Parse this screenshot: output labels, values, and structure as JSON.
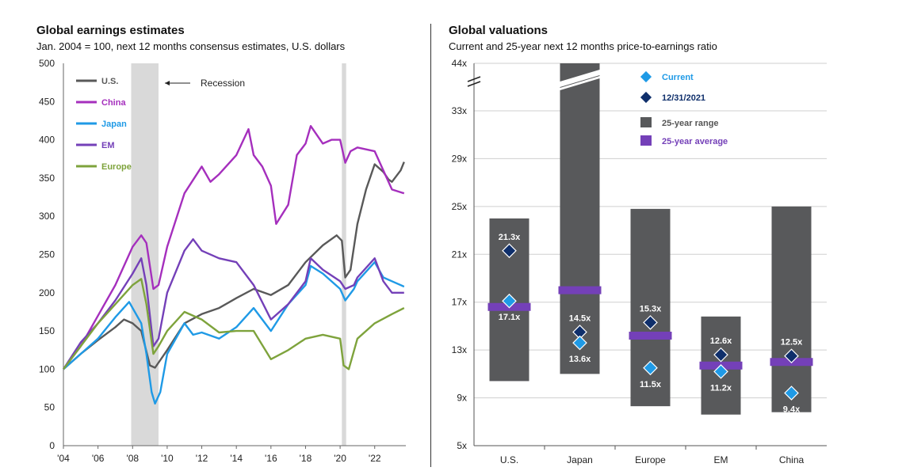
{
  "left": {
    "title": "Global earnings estimates",
    "subtitle": "Jan. 2004 = 100, next 12 months consensus estimates, U.S. dollars"
  },
  "right": {
    "title": "Global valuations",
    "subtitle": "Current and 25-year next 12 months price-to-earnings ratio"
  },
  "colors": {
    "us": "#595959",
    "china": "#a52fbd",
    "japan": "#1f9ae6",
    "em": "#7440b8",
    "europe": "#7ea33c",
    "recession": "#d9d9d9",
    "bar": "#58595b",
    "avg": "#7440b8",
    "current": "#1f9ae6",
    "dec2021": "#0f2f6b"
  },
  "chart_data": [
    {
      "type": "line",
      "title": "Global earnings estimates",
      "subtitle": "Jan. 2004 = 100, next 12 months consensus estimates, U.S. dollars",
      "xlim": [
        2004,
        2023.8
      ],
      "ylim": [
        0,
        500
      ],
      "xticks": [
        2004,
        2006,
        2008,
        2010,
        2012,
        2014,
        2016,
        2018,
        2020,
        2022
      ],
      "xtick_labels": [
        "'04",
        "'06",
        "'08",
        "'10",
        "'12",
        "'14",
        "'16",
        "'18",
        "'20",
        "'22"
      ],
      "yticks": [
        0,
        50,
        100,
        150,
        200,
        250,
        300,
        350,
        400,
        450,
        500
      ],
      "recessions": [
        [
          2007.92,
          2009.5
        ],
        [
          2020.1,
          2020.35
        ]
      ],
      "recession_label": "Recession",
      "series": [
        {
          "name": "U.S.",
          "key": "us",
          "x": [
            2004,
            2005,
            2006,
            2007,
            2007.5,
            2008,
            2008.5,
            2009,
            2009.3,
            2010,
            2011,
            2012,
            2013,
            2014,
            2015,
            2016,
            2017,
            2018,
            2019,
            2019.8,
            2020.1,
            2020.3,
            2020.6,
            2021,
            2021.5,
            2022,
            2022.5,
            2022.8,
            2023,
            2023.5,
            2023.7
          ],
          "values": [
            100,
            120,
            138,
            155,
            165,
            160,
            150,
            105,
            102,
            125,
            160,
            172,
            180,
            193,
            205,
            197,
            210,
            240,
            262,
            275,
            268,
            220,
            230,
            290,
            335,
            368,
            358,
            348,
            345,
            360,
            371
          ]
        },
        {
          "name": "China",
          "key": "china",
          "x": [
            2004,
            2005,
            2006,
            2007,
            2008,
            2008.5,
            2008.8,
            2009.2,
            2009.5,
            2010,
            2011,
            2012,
            2012.5,
            2013,
            2014,
            2014.7,
            2015,
            2015.5,
            2016,
            2016.3,
            2017,
            2017.5,
            2018,
            2018.3,
            2019,
            2019.5,
            2020,
            2020.3,
            2020.6,
            2021,
            2022,
            2022.5,
            2023,
            2023.7
          ],
          "values": [
            100,
            130,
            170,
            210,
            260,
            275,
            265,
            205,
            210,
            260,
            330,
            365,
            345,
            355,
            380,
            414,
            380,
            365,
            340,
            290,
            315,
            380,
            395,
            418,
            395,
            400,
            400,
            370,
            385,
            390,
            385,
            360,
            335,
            330
          ]
        },
        {
          "name": "Japan",
          "key": "japan",
          "x": [
            2004,
            2005,
            2006,
            2007,
            2007.8,
            2008.5,
            2008.8,
            2009.1,
            2009.3,
            2009.6,
            2010,
            2011,
            2011.5,
            2012,
            2013,
            2014,
            2015,
            2016,
            2017,
            2018,
            2018.3,
            2019,
            2020,
            2020.3,
            2020.8,
            2021,
            2022,
            2022.5,
            2023,
            2023.7
          ],
          "values": [
            100,
            120,
            140,
            168,
            188,
            160,
            120,
            70,
            55,
            70,
            120,
            160,
            145,
            148,
            140,
            155,
            180,
            150,
            185,
            210,
            235,
            225,
            205,
            190,
            205,
            215,
            240,
            220,
            215,
            208
          ]
        },
        {
          "name": "EM",
          "key": "em",
          "x": [
            2004,
            2005,
            2006,
            2007,
            2008,
            2008.5,
            2008.8,
            2009.2,
            2009.5,
            2010,
            2011,
            2011.5,
            2012,
            2013,
            2014,
            2015,
            2016,
            2017,
            2018,
            2018.3,
            2019,
            2020,
            2020.3,
            2020.8,
            2021,
            2022,
            2022.5,
            2023,
            2023.7
          ],
          "values": [
            100,
            135,
            160,
            190,
            225,
            245,
            210,
            130,
            140,
            200,
            255,
            270,
            255,
            245,
            240,
            210,
            165,
            185,
            215,
            245,
            230,
            215,
            205,
            210,
            220,
            245,
            215,
            200,
            200
          ]
        },
        {
          "name": "Europe",
          "key": "europe",
          "x": [
            2004,
            2005,
            2006,
            2007,
            2008,
            2008.5,
            2008.8,
            2009.2,
            2009.5,
            2010,
            2011,
            2012,
            2013,
            2014,
            2015,
            2016,
            2017,
            2018,
            2019,
            2020,
            2020.2,
            2020.5,
            2021,
            2022,
            2023,
            2023.7
          ],
          "values": [
            100,
            130,
            160,
            185,
            210,
            218,
            185,
            120,
            130,
            150,
            175,
            165,
            148,
            150,
            150,
            113,
            125,
            140,
            145,
            140,
            105,
            100,
            140,
            160,
            172,
            180
          ]
        }
      ]
    },
    {
      "type": "bar",
      "title": "Global valuations",
      "subtitle": "Current and 25-year next 12 months price-to-earnings ratio",
      "categories": [
        "U.S.",
        "Japan",
        "Europe",
        "EM",
        "China"
      ],
      "ylim": [
        5,
        44
      ],
      "ytick_labels": [
        "5x",
        "9x",
        "13x",
        "17x",
        "21x",
        "25x",
        "29x",
        "33x",
        "44x"
      ],
      "axis_break": true,
      "range_low": [
        10.4,
        11.0,
        8.3,
        7.6,
        7.8
      ],
      "range_high": [
        24.0,
        44.0,
        24.8,
        15.8,
        25.0
      ],
      "avg": [
        16.6,
        18.0,
        14.2,
        11.7,
        12.0
      ],
      "current": [
        17.1,
        13.6,
        11.5,
        11.2,
        9.4
      ],
      "current_labels": [
        "17.1x",
        "13.6x",
        "11.5x",
        "11.2x",
        "9.4x"
      ],
      "dec2021": [
        21.3,
        14.5,
        15.3,
        12.6,
        12.5
      ],
      "dec2021_labels": [
        "21.3x",
        "14.5x",
        "15.3x",
        "12.6x",
        "12.5x"
      ],
      "legend": {
        "current": "Current",
        "dec2021": "12/31/2021",
        "range": "25-year range",
        "average": "25-year average"
      }
    }
  ]
}
